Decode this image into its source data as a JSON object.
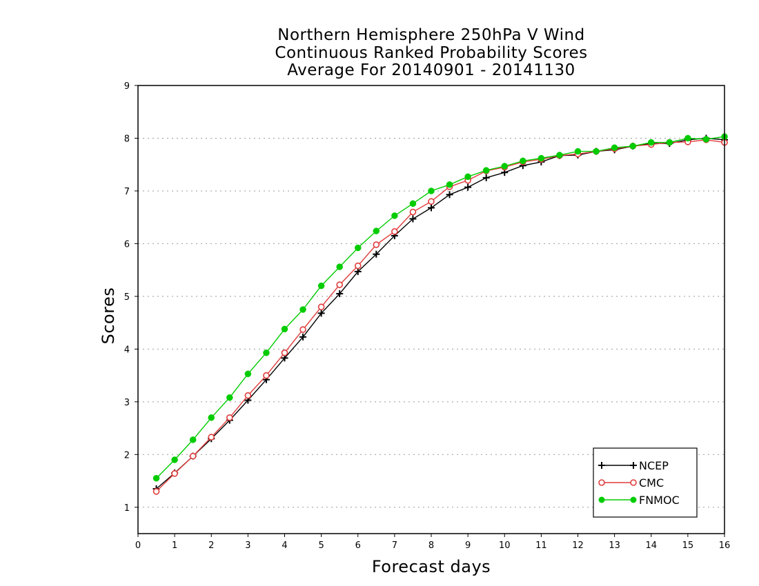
{
  "chart_data": {
    "type": "line",
    "title": [
      "Northern Hemisphere 250hPa V Wind",
      "Continuous Ranked Probability Scores",
      "Average For 20140901 - 20141130"
    ],
    "xlabel": "Forecast days",
    "ylabel": "Scores",
    "xlim": [
      0,
      16
    ],
    "ylim": [
      0.5,
      9
    ],
    "xticks": [
      0,
      1,
      2,
      3,
      4,
      5,
      6,
      7,
      8,
      9,
      10,
      11,
      12,
      13,
      14,
      15,
      16
    ],
    "yticks": [
      1,
      2,
      3,
      4,
      5,
      6,
      7,
      8,
      9
    ],
    "grid": "horizontal dotted",
    "legend_position": "bottom-right",
    "x": [
      0.5,
      1,
      1.5,
      2,
      2.5,
      3,
      3.5,
      4,
      4.5,
      5,
      5.5,
      6,
      6.5,
      7,
      7.5,
      8,
      8.5,
      9,
      9.5,
      10,
      10.5,
      11,
      11.5,
      12,
      12.5,
      13,
      13.5,
      14,
      14.5,
      15,
      15.5,
      16
    ],
    "series": [
      {
        "name": "NCEP",
        "color": "#000000",
        "marker": "plus",
        "values": [
          1.35,
          1.65,
          1.97,
          2.3,
          2.65,
          3.03,
          3.42,
          3.83,
          4.23,
          4.68,
          5.05,
          5.47,
          5.8,
          6.15,
          6.47,
          6.68,
          6.93,
          7.07,
          7.25,
          7.35,
          7.48,
          7.55,
          7.67,
          7.68,
          7.75,
          7.78,
          7.85,
          7.9,
          7.9,
          7.97,
          8.0,
          7.97
        ]
      },
      {
        "name": "CMC",
        "color": "#e03a3a",
        "marker": "open-circle",
        "values": [
          1.3,
          1.64,
          1.97,
          2.33,
          2.7,
          3.12,
          3.5,
          3.93,
          4.37,
          4.8,
          5.22,
          5.58,
          5.98,
          6.23,
          6.6,
          6.8,
          7.08,
          7.2,
          7.38,
          7.45,
          7.55,
          7.6,
          7.67,
          7.7,
          7.75,
          7.8,
          7.85,
          7.88,
          7.92,
          7.93,
          7.97,
          7.92
        ]
      },
      {
        "name": "FNMOC",
        "color": "#00cc00",
        "marker": "filled-circle",
        "values": [
          1.55,
          1.9,
          2.28,
          2.7,
          3.08,
          3.53,
          3.93,
          4.38,
          4.75,
          5.2,
          5.56,
          5.92,
          6.24,
          6.53,
          6.76,
          7.0,
          7.12,
          7.27,
          7.39,
          7.47,
          7.57,
          7.62,
          7.68,
          7.75,
          7.75,
          7.82,
          7.85,
          7.92,
          7.92,
          8.0,
          7.98,
          8.03
        ]
      }
    ]
  }
}
